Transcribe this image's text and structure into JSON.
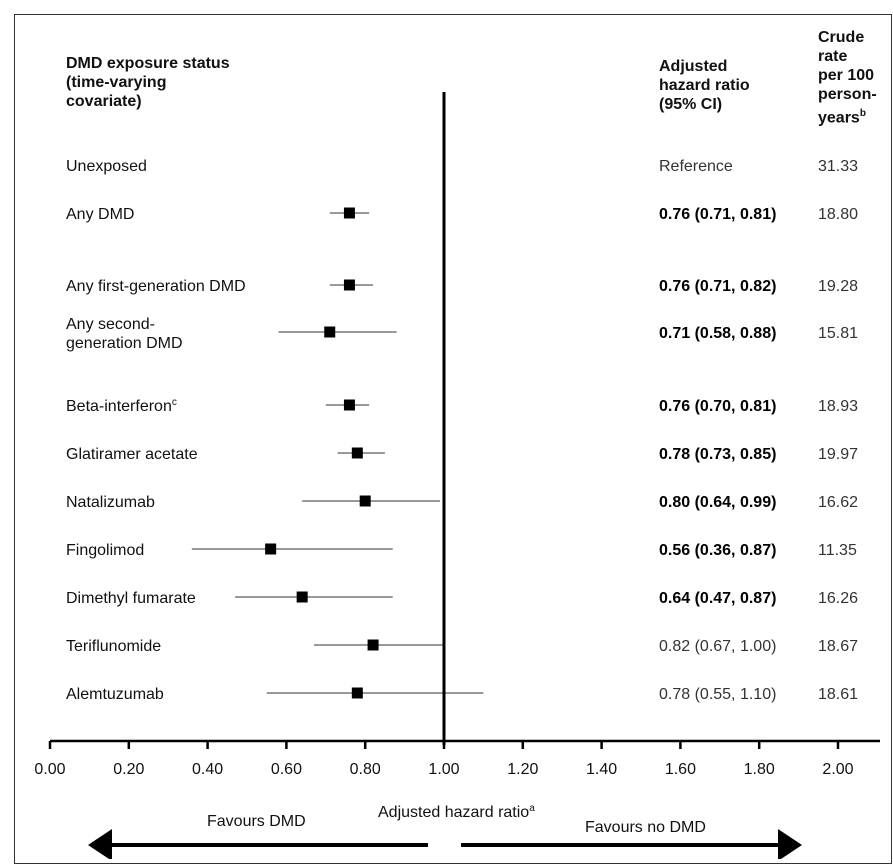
{
  "chart_data": {
    "type": "forest",
    "xlabel": "Adjusted hazard ratio",
    "xlabel_sup": "a",
    "xlim": [
      0.0,
      2.0
    ],
    "xticks": [
      "0.00",
      "0.20",
      "0.40",
      "0.60",
      "0.80",
      "1.00",
      "1.20",
      "1.40",
      "1.60",
      "1.80",
      "2.00"
    ],
    "reference_line": 1.0,
    "columns": {
      "label": "DMD exposure status\n(time-varying\ncovariate)",
      "hr": "Adjusted\nhazard ratio\n(95% CI)",
      "rate": "Crude\nrate\nper 100\nperson-\nyears",
      "rate_sup": "b"
    },
    "rows": [
      {
        "label": "Unexposed",
        "hr_text": "Reference",
        "rate": "31.33",
        "bold": false,
        "est": null,
        "lo": null,
        "hi": null
      },
      {
        "label": "Any DMD",
        "hr_text": "0.76 (0.71, 0.81)",
        "rate": "18.80",
        "bold": true,
        "est": 0.76,
        "lo": 0.71,
        "hi": 0.81
      },
      {
        "label": "Any first-generation DMD",
        "hr_text": "0.76 (0.71, 0.82)",
        "rate": "19.28",
        "bold": true,
        "est": 0.76,
        "lo": 0.71,
        "hi": 0.82
      },
      {
        "label": "Any second-\ngeneration DMD",
        "hr_text": "0.71 (0.58, 0.88)",
        "rate": "15.81",
        "bold": true,
        "est": 0.71,
        "lo": 0.58,
        "hi": 0.88
      },
      {
        "label": "Beta-interferon",
        "label_sup": "c",
        "hr_text": "0.76 (0.70, 0.81)",
        "rate": "18.93",
        "bold": true,
        "est": 0.76,
        "lo": 0.7,
        "hi": 0.81
      },
      {
        "label": "Glatiramer acetate",
        "hr_text": "0.78 (0.73, 0.85)",
        "rate": "19.97",
        "bold": true,
        "est": 0.78,
        "lo": 0.73,
        "hi": 0.85
      },
      {
        "label": "Natalizumab",
        "hr_text": "0.80 (0.64, 0.99)",
        "rate": "16.62",
        "bold": true,
        "est": 0.8,
        "lo": 0.64,
        "hi": 0.99
      },
      {
        "label": "Fingolimod",
        "hr_text": "0.56 (0.36, 0.87)",
        "rate": "11.35",
        "bold": true,
        "est": 0.56,
        "lo": 0.36,
        "hi": 0.87
      },
      {
        "label": "Dimethyl fumarate",
        "hr_text": "0.64 (0.47, 0.87)",
        "rate": "16.26",
        "bold": true,
        "est": 0.64,
        "lo": 0.47,
        "hi": 0.87
      },
      {
        "label": "Teriflunomide",
        "hr_text": "0.82 (0.67, 1.00)",
        "rate": "18.67",
        "bold": false,
        "est": 0.82,
        "lo": 0.67,
        "hi": 1.0
      },
      {
        "label": "Alemtuzumab",
        "hr_text": "0.78 (0.55, 1.10)",
        "rate": "18.61",
        "bold": false,
        "est": 0.78,
        "lo": 0.55,
        "hi": 1.1
      }
    ],
    "favours_left": "Favours DMD",
    "favours_right": "Favours no DMD"
  }
}
